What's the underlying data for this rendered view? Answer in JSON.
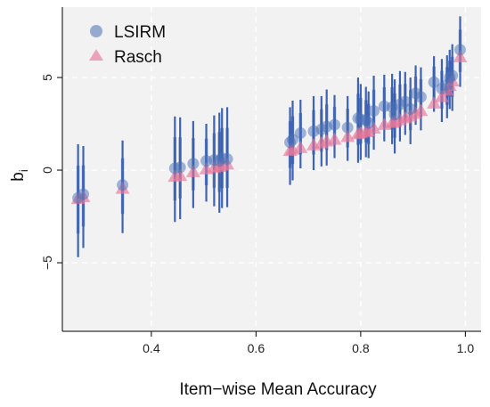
{
  "chart_data": {
    "type": "scatter",
    "title": "",
    "xlabel": "Item−wise Mean Accuracy",
    "ylabel_main": "b",
    "ylabel_sub": "i",
    "xlim": [
      0.23,
      1.03
    ],
    "ylim": [
      -8.7,
      8.8
    ],
    "xticks": [
      0.4,
      0.6,
      0.8,
      1.0
    ],
    "xtick_labels": [
      "0.4",
      "0.6",
      "0.8",
      "1.0"
    ],
    "yticks": [
      -5,
      0,
      5
    ],
    "ytick_labels": [
      "−5",
      "0",
      "5"
    ],
    "grid": true,
    "legend_position": "top-left",
    "colors": {
      "lsirm": "#4a6fb5",
      "lsirm_uncertainty": "#1f4aa8",
      "rasch": "#e8789a",
      "panel": "#f2f2f2",
      "grid": "#ffffff"
    },
    "series": [
      {
        "name": "LSIRM",
        "marker": "circle",
        "x": [
          0.26,
          0.27,
          0.345,
          0.445,
          0.455,
          0.48,
          0.505,
          0.52,
          0.53,
          0.535,
          0.545,
          0.665,
          0.67,
          0.685,
          0.71,
          0.725,
          0.735,
          0.75,
          0.775,
          0.795,
          0.8,
          0.81,
          0.815,
          0.825,
          0.845,
          0.86,
          0.865,
          0.875,
          0.885,
          0.895,
          0.905,
          0.915,
          0.94,
          0.955,
          0.965,
          0.97,
          0.975,
          0.99
        ],
        "y": [
          -1.5,
          -1.3,
          -0.8,
          0.1,
          0.15,
          0.35,
          0.5,
          0.55,
          0.5,
          0.65,
          0.6,
          1.5,
          1.65,
          2.0,
          2.1,
          2.2,
          2.35,
          2.45,
          2.3,
          2.8,
          2.75,
          2.7,
          2.55,
          3.2,
          3.45,
          3.4,
          3.0,
          3.55,
          3.7,
          3.3,
          4.15,
          3.95,
          4.75,
          4.4,
          4.6,
          5.0,
          5.1,
          6.5
        ]
      },
      {
        "name": "Rasch",
        "marker": "triangle",
        "x": [
          0.26,
          0.27,
          0.345,
          0.445,
          0.455,
          0.48,
          0.505,
          0.52,
          0.53,
          0.535,
          0.545,
          0.665,
          0.67,
          0.685,
          0.71,
          0.725,
          0.735,
          0.75,
          0.775,
          0.795,
          0.8,
          0.81,
          0.815,
          0.825,
          0.845,
          0.86,
          0.865,
          0.875,
          0.885,
          0.895,
          0.905,
          0.915,
          0.94,
          0.955,
          0.965,
          0.97,
          0.975,
          0.99
        ],
        "y": [
          -1.55,
          -1.45,
          -1.0,
          -0.35,
          -0.3,
          -0.1,
          0.05,
          0.12,
          0.18,
          0.25,
          0.3,
          1.05,
          1.1,
          1.2,
          1.35,
          1.45,
          1.55,
          1.65,
          1.8,
          1.95,
          2.0,
          2.05,
          2.1,
          2.25,
          2.45,
          2.55,
          2.6,
          2.7,
          2.8,
          2.9,
          3.05,
          3.2,
          3.6,
          3.95,
          4.3,
          4.55,
          4.8,
          6.1
        ]
      }
    ]
  }
}
